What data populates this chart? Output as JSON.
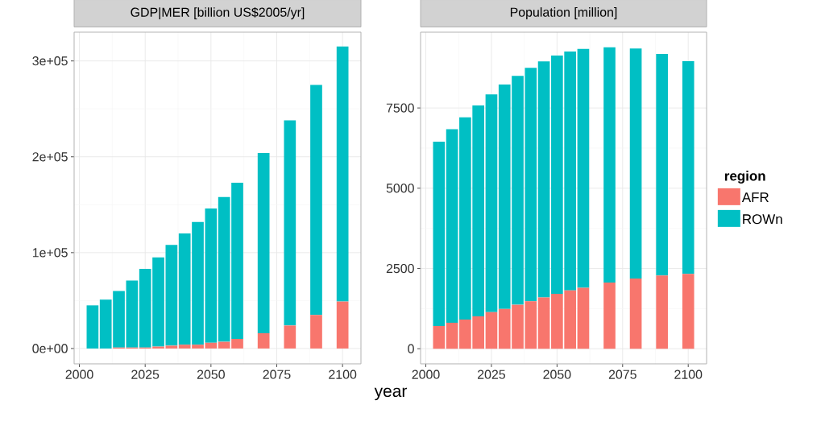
{
  "chart_data": [
    {
      "type": "bar",
      "stacked": true,
      "title": "GDP|MER [billion US$2005/yr]",
      "xlabel": "year",
      "x": [
        2005,
        2010,
        2015,
        2020,
        2025,
        2030,
        2035,
        2040,
        2045,
        2050,
        2055,
        2060,
        2070,
        2080,
        2090,
        2100
      ],
      "series": [
        {
          "color": "#f8766d",
          "values": [
            0,
            0,
            1000,
            1000,
            1000,
            2000,
            3000,
            4000,
            4000,
            6000,
            7000,
            10000,
            16000,
            24000,
            35000,
            49000
          ]
        },
        {
          "color": "#00bfc4",
          "values": [
            45000,
            51000,
            59000,
            70000,
            82000,
            93000,
            105000,
            116000,
            128000,
            140000,
            151000,
            163000,
            188000,
            214000,
            240000,
            266000
          ]
        }
      ],
      "xlim": [
        1998,
        2107
      ],
      "xticks": [
        2000,
        2025,
        2050,
        2075,
        2100
      ],
      "ylim": [
        -16000,
        330000
      ],
      "yticks": [
        {
          "value": 0,
          "label": "0e+00"
        },
        {
          "value": 100000,
          "label": "1e+05"
        },
        {
          "value": 200000,
          "label": "2e+05"
        },
        {
          "value": 300000,
          "label": "3e+05"
        }
      ],
      "grid": true
    },
    {
      "type": "bar",
      "stacked": true,
      "title": "Population [million]",
      "legend_title": "region",
      "legend": "right",
      "x": [
        2005,
        2010,
        2015,
        2020,
        2025,
        2030,
        2035,
        2040,
        2045,
        2050,
        2055,
        2060,
        2070,
        2080,
        2090,
        2100
      ],
      "series": [
        {
          "name": "AFR",
          "color": "#f8766d",
          "values": [
            710,
            810,
            910,
            1010,
            1140,
            1240,
            1370,
            1480,
            1600,
            1710,
            1820,
            1900,
            2060,
            2190,
            2280,
            2330
          ]
        },
        {
          "name": "ROWn",
          "color": "#00bfc4",
          "values": [
            5740,
            6030,
            6300,
            6570,
            6780,
            6990,
            7130,
            7270,
            7350,
            7420,
            7440,
            7440,
            7330,
            7160,
            6900,
            6630
          ]
        }
      ],
      "xlim": [
        1998,
        2107
      ],
      "xticks": [
        2000,
        2025,
        2050,
        2075,
        2100
      ],
      "ylim": [
        -470,
        9860
      ],
      "yticks": [
        0,
        2500,
        5000,
        7500
      ],
      "grid": true
    }
  ]
}
